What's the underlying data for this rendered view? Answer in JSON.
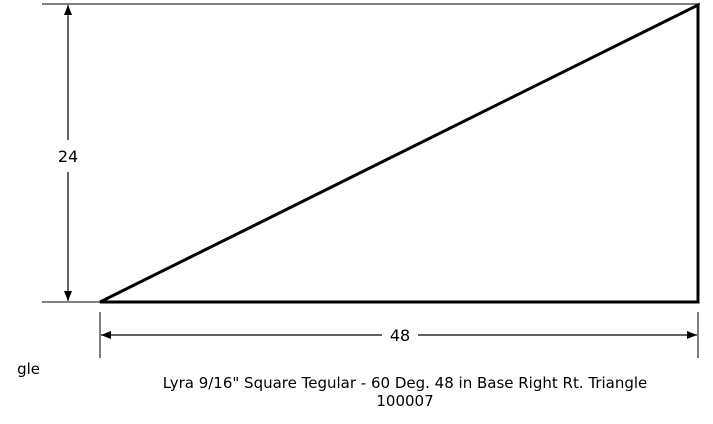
{
  "drawing": {
    "height_dimension": "24",
    "base_dimension": "48",
    "title": "Lyra 9/16\" Square Tegular - 60 Deg. 48 in Base Right Rt. Triangle",
    "part_number": "100007",
    "clipped_text": "gle"
  }
}
